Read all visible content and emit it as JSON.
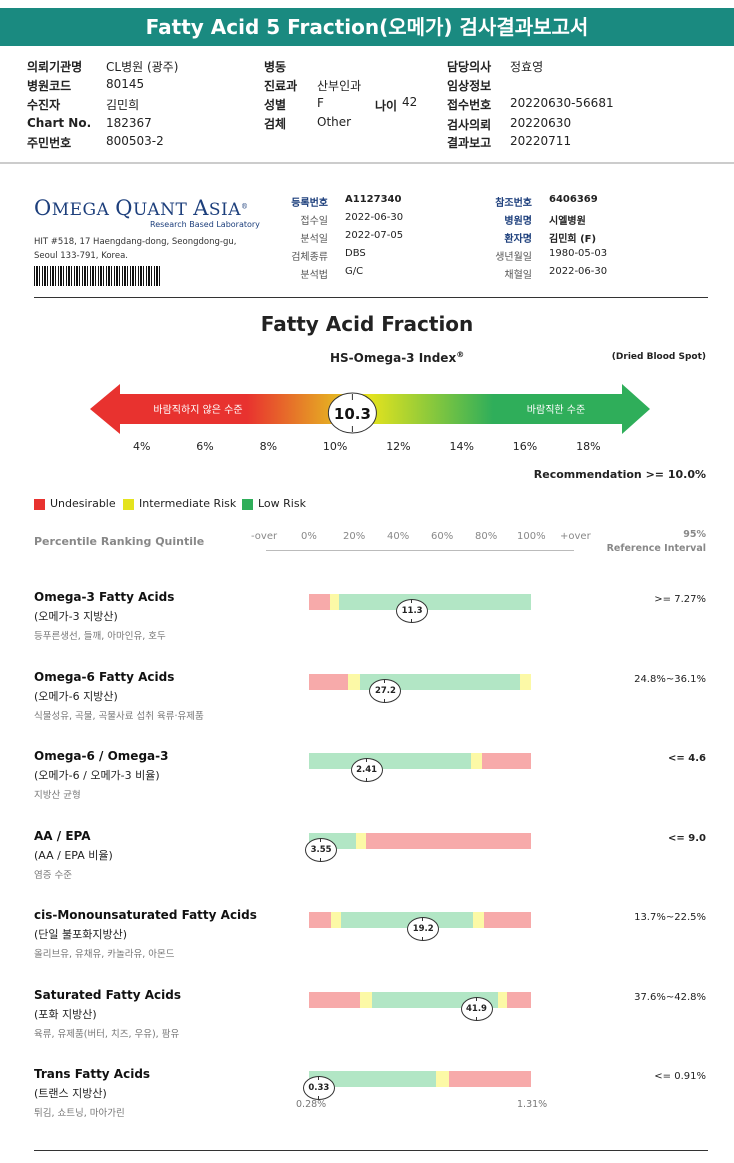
{
  "title": "Fatty Acid 5 Fraction(오메가) 검사결과보고서",
  "header": {
    "col1": [
      {
        "label": "의뢰기관명",
        "value": "CL병원 (광주)"
      },
      {
        "label": "병원코드",
        "value": "80145"
      },
      {
        "label": "수진자",
        "value": "김민희"
      },
      {
        "label": "Chart No.",
        "value": "182367"
      },
      {
        "label": "주민번호",
        "value": "800503-2"
      }
    ],
    "col2": [
      {
        "label": "병동",
        "value": ""
      },
      {
        "label": "진료과",
        "value": "산부인과"
      },
      {
        "label": "성별",
        "value": "F"
      },
      {
        "label": "검체",
        "value": "Other"
      }
    ],
    "age_label": "나이",
    "age_value": "42",
    "col3": [
      {
        "label": "담당의사",
        "value": "정효영"
      },
      {
        "label": "임상정보",
        "value": ""
      },
      {
        "label": "접수번호",
        "value": "20220630-56681"
      },
      {
        "label": "검사의뢰",
        "value": "20220630"
      },
      {
        "label": "결과보고",
        "value": "20220711"
      }
    ]
  },
  "lab": {
    "logo_o": "O",
    "logo_mega": "MEGA ",
    "logo_q": "Q",
    "logo_uant": "UANT ",
    "logo_a": "A",
    "logo_sia": "SIA",
    "logo_reg": "®",
    "logo_sub": "Research Based Laboratory",
    "address1": "HIT #518, 17 Haengdang-dong, Seongdong-gu,",
    "address2": "Seoul 133-791, Korea."
  },
  "info_mid": [
    {
      "label": "등록번호",
      "value": "A1127340",
      "bold": true
    },
    {
      "label": "접수일",
      "value": "2022-06-30"
    },
    {
      "label": "분석일",
      "value": "2022-07-05"
    },
    {
      "label": "검체종류",
      "value": "DBS"
    },
    {
      "label": "분석법",
      "value": "G/C"
    }
  ],
  "info_right": [
    {
      "label": "참조번호",
      "value": "6406369",
      "bold": true
    },
    {
      "label": "병원명",
      "value": "시엘병원",
      "bold": true
    },
    {
      "label": "환자명",
      "value": "김민희 (F)",
      "bold": true
    },
    {
      "label": "생년월일",
      "value": "1980-05-03"
    },
    {
      "label": "채혈일",
      "value": "2022-06-30"
    }
  ],
  "main_title": "Fatty Acid Fraction",
  "index_title": "HS-Omega-3 Index",
  "index_reg": "®",
  "sample_type": "(Dried Blood Spot)",
  "arrow": {
    "left_text": "바람직하지 않은 수준",
    "right_text": "바람직한 수준",
    "value": "10.3",
    "value_num": 10.3,
    "ticks": [
      "4%",
      "6%",
      "8%",
      "10%",
      "12%",
      "14%",
      "16%",
      "18%"
    ],
    "tick_values": [
      4,
      6,
      8,
      10,
      12,
      14,
      16,
      18
    ],
    "colors": {
      "red": "#e8322f",
      "yellow": "#e4e31e",
      "green": "#2fae5a"
    }
  },
  "recommendation": "Recommendation  >= 10.0%",
  "legend": [
    {
      "label": "Undesirable",
      "color": "#e8322f"
    },
    {
      "label": "Intermediate Risk",
      "color": "#e4e31e"
    },
    {
      "label": "Low Risk",
      "color": "#2fae5a"
    }
  ],
  "scale": {
    "title": "Percentile Ranking Quintile",
    "labels": [
      "-over",
      "0%",
      "20%",
      "40%",
      "60%",
      "80%",
      "100%",
      "+over"
    ],
    "ref_line1": "95%",
    "ref_line2": "Reference Interval"
  },
  "bar_colors": {
    "red": "#f7aaaa",
    "yellow": "#fcf9a6",
    "green": "#b2e6c5"
  },
  "rows": [
    {
      "name": "Omega-3 Fatty Acids",
      "sub": "(오메가-3 지방산)",
      "desc": "등푸른생선, 들깨, 아마인유, 호두",
      "value": "11.3",
      "ref": ">= 7.27%",
      "ref_bold": false,
      "segments": [
        [
          "red",
          0,
          0.095
        ],
        [
          "yellow",
          0.095,
          0.135
        ],
        [
          "green",
          0.135,
          1
        ]
      ],
      "marker_pos": 0.46
    },
    {
      "name": "Omega-6 Fatty Acids",
      "sub": "(오메가-6 지방산)",
      "desc": "식물성유, 곡물, 곡물사료 섭취 육류·유제품",
      "value": "27.2",
      "ref": "24.8%~36.1%",
      "ref_bold": false,
      "segments": [
        [
          "red",
          0,
          0.175
        ],
        [
          "yellow",
          0.175,
          0.23
        ],
        [
          "green",
          0.23,
          0.95
        ],
        [
          "yellow",
          0.95,
          1
        ]
      ],
      "marker_pos": 0.34
    },
    {
      "name": "Omega-6 / Omega-3",
      "sub": "(오메가-6 / 오메가-3 비율)",
      "desc": "지방산 균형",
      "value": "2.41",
      "ref": "<= 4.6",
      "ref_bold": true,
      "segments": [
        [
          "green",
          0,
          0.73
        ],
        [
          "yellow",
          0.73,
          0.78
        ],
        [
          "red",
          0.78,
          1
        ]
      ],
      "marker_pos": 0.255
    },
    {
      "name": "AA / EPA",
      "sub": "(AA / EPA 비율)",
      "desc": "염증 수준",
      "value": "3.55",
      "ref": "<= 9.0",
      "ref_bold": true,
      "segments": [
        [
          "green",
          0,
          0.21
        ],
        [
          "yellow",
          0.21,
          0.255
        ],
        [
          "red",
          0.255,
          1
        ]
      ],
      "marker_pos": 0.05
    },
    {
      "name": "cis-Monounsaturated Fatty Acids",
      "sub": "(단일 불포화지방산)",
      "desc": "올리브유, 유채유, 카놀라유, 아몬드",
      "value": "19.2",
      "ref": "13.7%~22.5%",
      "ref_bold": false,
      "segments": [
        [
          "red",
          0,
          0.1
        ],
        [
          "yellow",
          0.1,
          0.145
        ],
        [
          "green",
          0.145,
          0.74
        ],
        [
          "yellow",
          0.74,
          0.79
        ],
        [
          "red",
          0.79,
          1
        ]
      ],
      "marker_pos": 0.51
    },
    {
      "name": "Saturated Fatty Acids",
      "sub": "(포화 지방산)",
      "desc": "육류, 유제품(버터, 치즈, 우유), 팜유",
      "value": "41.9",
      "ref": "37.6%~42.8%",
      "ref_bold": false,
      "segments": [
        [
          "red",
          0,
          0.23
        ],
        [
          "yellow",
          0.23,
          0.285
        ],
        [
          "green",
          0.285,
          0.85
        ],
        [
          "yellow",
          0.85,
          0.89
        ],
        [
          "red",
          0.89,
          1
        ]
      ],
      "marker_pos": 0.75
    },
    {
      "name": "Trans Fatty Acids",
      "sub": "(트랜스 지방산)",
      "desc": "튀김, 쇼트닝, 마아가린",
      "value": "0.33",
      "ref": "<= 0.91%",
      "ref_bold": false,
      "segments": [
        [
          "green",
          0,
          0.57
        ],
        [
          "yellow",
          0.57,
          0.63
        ],
        [
          "red",
          0.63,
          1
        ]
      ],
      "marker_pos": 0.04,
      "end_left": "0.28%",
      "end_right": "1.31%"
    }
  ]
}
